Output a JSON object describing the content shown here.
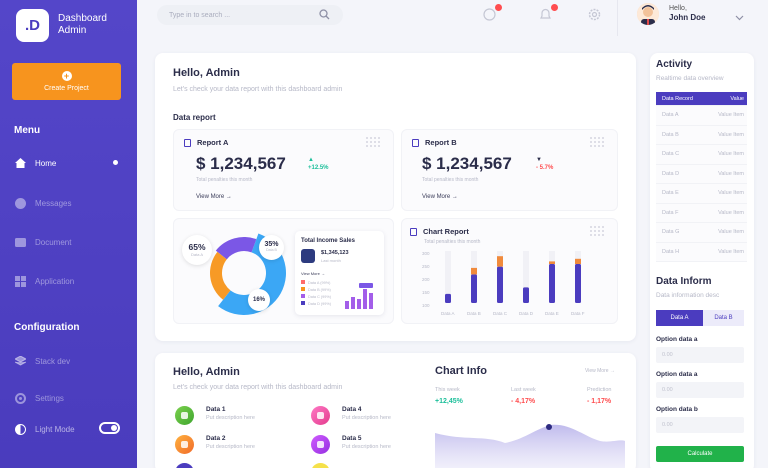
{
  "sidebar": {
    "logo": ".D",
    "brand_line1": "Dashboard",
    "brand_line2": "Admin",
    "create_label": "Create Project",
    "menu_heading": "Menu",
    "config_heading": "Configuration",
    "items": [
      {
        "label": "Home"
      },
      {
        "label": "Messages"
      },
      {
        "label": "Document"
      },
      {
        "label": "Application"
      },
      {
        "label": "Stack dev"
      },
      {
        "label": "Settings"
      },
      {
        "label": "Light Mode"
      }
    ]
  },
  "topbar": {
    "search_placeholder": "Type in to search ...",
    "user_hello": "Hello,",
    "user_name": "John Doe"
  },
  "main": {
    "greeting": "Hello, Admin",
    "greeting_sub": "Let's check your data report with this dashboard admin",
    "data_report": "Data report",
    "report_a": {
      "title": "Report A",
      "amount": "$ 1,234,567",
      "trend": "+12.5%",
      "sub": "Total penalties this month",
      "view_more": "View More"
    },
    "report_b": {
      "title": "Report B",
      "amount": "$ 1,234,567",
      "trend": "- 5.7%",
      "sub": "Total penalties this month",
      "view_more": "View More"
    },
    "donut": {
      "pct_left": "65%",
      "pct_left_sub": "Data A",
      "pct_right": "35%",
      "pct_right_sub": "Data B",
      "pct_bottom": "16%",
      "income_title": "Total Income Sales",
      "income_amount": "$1,345,123",
      "income_sub": "Last month",
      "view_more": "View More",
      "legend": [
        "Data A (99%)",
        "Data B (99%)",
        "Data C (99%)",
        "Data D (99%)"
      ]
    },
    "chart_report": {
      "title": "Chart Report",
      "sub": "Total penalties this month"
    }
  },
  "bottom": {
    "greeting": "Hello, Admin",
    "greeting_sub": "Let's check your data report with this dashboard admin",
    "items": [
      {
        "title": "Data 1",
        "desc": "Put description here"
      },
      {
        "title": "Data 4",
        "desc": "Put description here"
      },
      {
        "title": "Data 2",
        "desc": "Put description here"
      },
      {
        "title": "Data 5",
        "desc": "Put description here"
      }
    ],
    "chart_info": "Chart Info",
    "view_more": "View More",
    "stats": [
      {
        "label": "This week",
        "value": "+12,45%"
      },
      {
        "label": "Last week",
        "value": "- 4,17%"
      },
      {
        "label": "Prediction",
        "value": "- 1,17%"
      }
    ]
  },
  "activity": {
    "title": "Activity",
    "sub": "Realtime data overview",
    "header": [
      "Data Record",
      "Value"
    ],
    "rows": [
      [
        "Data A",
        "Value Item"
      ],
      [
        "Data B",
        "Value Item"
      ],
      [
        "Data C",
        "Value Item"
      ],
      [
        "Data D",
        "Value Item"
      ],
      [
        "Data E",
        "Value Item"
      ],
      [
        "Data F",
        "Value Item"
      ],
      [
        "Data G",
        "Value Item"
      ],
      [
        "Data H",
        "Value Item"
      ]
    ],
    "inform_title": "Data Inform",
    "inform_sub": "Data information desc",
    "tab_a": "Data A",
    "tab_b": "Data B",
    "fields": [
      {
        "label": "Option data a",
        "value": "0.00"
      },
      {
        "label": "Option data a",
        "value": "0.00"
      },
      {
        "label": "Option data b",
        "value": "0.00"
      }
    ],
    "calculate": "Calculate"
  },
  "colors": {
    "primary": "#4b3cbf",
    "accent": "#f7941e",
    "success": "#21b24a",
    "positive": "#1bbf9a",
    "negative": "#ff4d4f"
  },
  "chart_data": [
    {
      "type": "bar",
      "title": "Chart Report",
      "categories": [
        "Data A",
        "Data B",
        "Data C",
        "Data D",
        "Data E",
        "Data F"
      ],
      "series": [
        {
          "values": [
            7,
            22,
            28,
            12,
            30,
            30
          ]
        },
        {
          "values": [
            0,
            5,
            8,
            0,
            2,
            4
          ]
        }
      ],
      "ylabels": [
        "300",
        "250",
        "200",
        "150",
        "100"
      ],
      "colors": [
        "#4b3cbf",
        "#f08a3c"
      ]
    },
    {
      "type": "pie",
      "values": [
        65,
        35,
        16
      ],
      "labels": [
        "65%",
        "35%",
        "16%"
      ]
    }
  ]
}
